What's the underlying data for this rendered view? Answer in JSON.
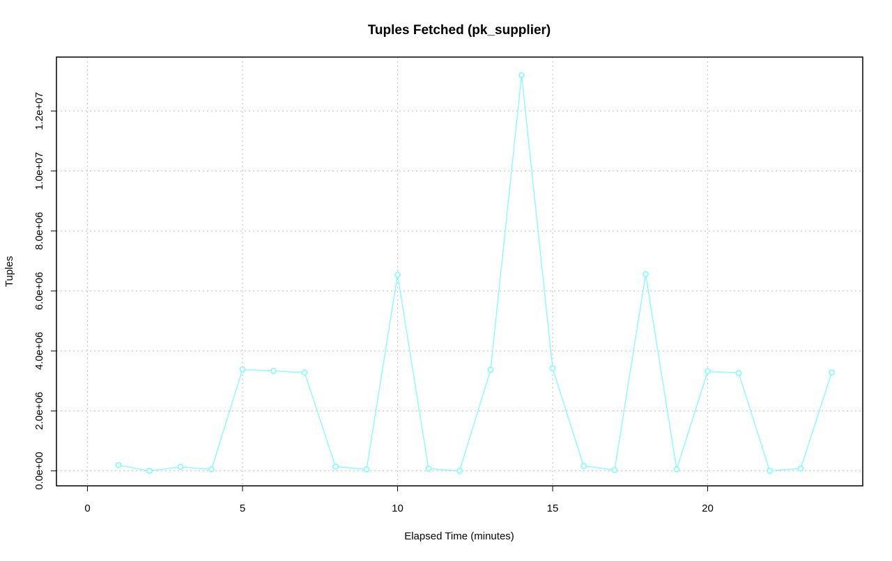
{
  "chart_data": {
    "type": "line",
    "title": "Tuples Fetched (pk_supplier)",
    "xlabel": "Elapsed Time (minutes)",
    "ylabel": "Tuples",
    "xlim": [
      -1,
      25
    ],
    "ylim": [
      -500000,
      13800000
    ],
    "xticks": [
      0,
      5,
      10,
      15,
      20
    ],
    "xtick_labels": [
      "0",
      "5",
      "10",
      "15",
      "20"
    ],
    "yticks": [
      0,
      2000000,
      4000000,
      6000000,
      8000000,
      10000000,
      12000000
    ],
    "ytick_labels": [
      "0.0e+00",
      "2.0e+06",
      "4.0e+06",
      "6.0e+06",
      "8.0e+06",
      "1.0e+07",
      "1.2e+07"
    ],
    "grid": true,
    "color": "#7ffdfd",
    "series": [
      {
        "x": [
          1,
          2,
          3,
          4,
          5,
          6,
          7,
          8,
          9,
          10,
          11,
          12,
          13,
          14,
          15,
          16,
          17,
          18,
          19,
          20,
          21,
          22,
          23,
          24
        ],
        "values": [
          190000,
          0,
          130000,
          50000,
          3380000,
          3330000,
          3280000,
          140000,
          50000,
          6540000,
          70000,
          0,
          3370000,
          13200000,
          3420000,
          160000,
          30000,
          6560000,
          50000,
          3320000,
          3260000,
          0,
          80000,
          3280000
        ]
      }
    ]
  }
}
